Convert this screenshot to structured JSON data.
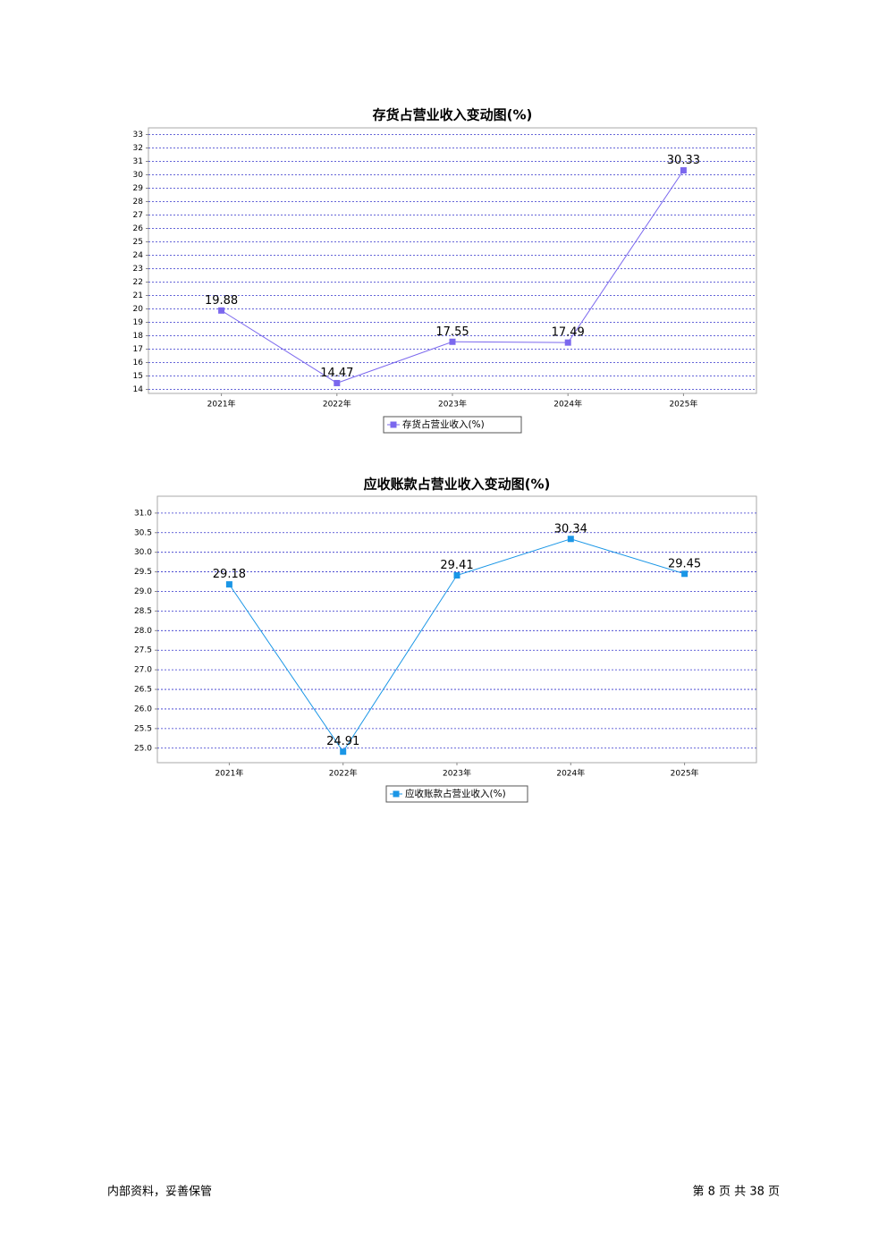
{
  "chart_data": [
    {
      "type": "line",
      "title": "存货占营业收入变动图(%)",
      "categories": [
        "2021年",
        "2022年",
        "2023年",
        "2024年",
        "2025年"
      ],
      "series": [
        {
          "name": "存货占营业收入(%)",
          "color": "#7b68ee",
          "values": [
            19.88,
            14.47,
            17.55,
            17.49,
            30.33
          ]
        }
      ],
      "ylim": [
        13.7,
        33.5
      ],
      "yticks": [
        14,
        15,
        16,
        17,
        18,
        19,
        20,
        21,
        22,
        23,
        24,
        25,
        26,
        27,
        28,
        29,
        30,
        31,
        32,
        33
      ],
      "grid": true,
      "legend": "bottom"
    },
    {
      "type": "line",
      "title": "应收账款占营业收入变动图(%)",
      "categories": [
        "2021年",
        "2022年",
        "2023年",
        "2024年",
        "2025年"
      ],
      "series": [
        {
          "name": "应收账款占营业收入(%)",
          "color": "#1a96e6",
          "values": [
            29.18,
            24.91,
            29.41,
            30.34,
            29.45
          ]
        }
      ],
      "ylim": [
        24.63,
        31.43
      ],
      "yticks": [
        {
          "value": 25,
          "label": "25.0"
        },
        {
          "value": 25.5,
          "label": "25.5"
        },
        {
          "value": 26,
          "label": "26.0"
        },
        {
          "value": 26.5,
          "label": "26.5"
        },
        {
          "value": 27,
          "label": "27.0"
        },
        {
          "value": 27.5,
          "label": "27.5"
        },
        {
          "value": 28,
          "label": "28.0"
        },
        {
          "value": 28.5,
          "label": "28.5"
        },
        {
          "value": 29,
          "label": "29.0"
        },
        {
          "value": 29.5,
          "label": "29.5"
        },
        {
          "value": 30,
          "label": "30.0"
        },
        {
          "value": 30.5,
          "label": "30.5"
        },
        {
          "value": 31,
          "label": "31.0"
        }
      ],
      "grid": true,
      "legend": "bottom"
    }
  ],
  "footer": {
    "left": "内部资料，妥善保管",
    "right": "第 8 页 共 38 页"
  }
}
